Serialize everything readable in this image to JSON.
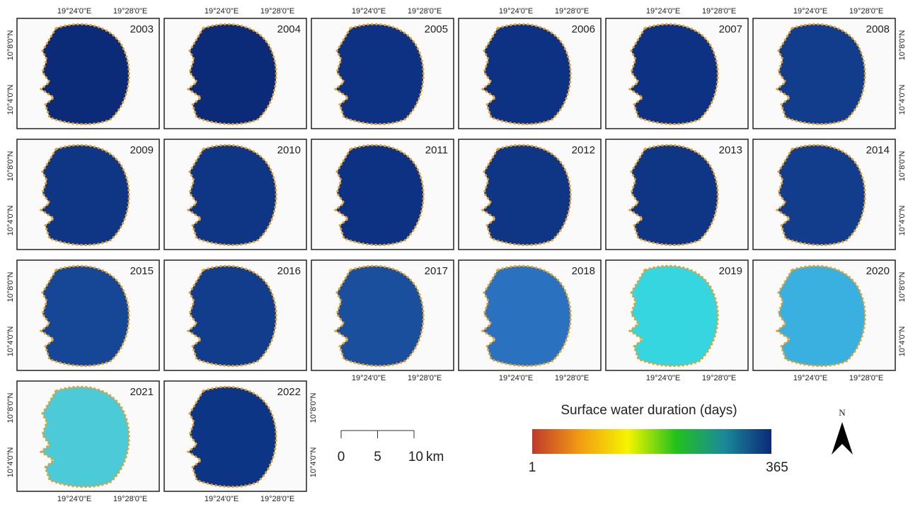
{
  "panels": [
    "2003",
    "2004",
    "2005",
    "2006",
    "2007",
    "2008",
    "2009",
    "2010",
    "2011",
    "2012",
    "2013",
    "2014",
    "2015",
    "2016",
    "2017",
    "2018",
    "2019",
    "2020",
    "2021",
    "2022"
  ],
  "lon_labels": [
    "19°24'0\"E",
    "19°28'0\"E"
  ],
  "lat_labels": [
    "10°8'0\"N",
    "10°4'0\"N"
  ],
  "scale_bar": {
    "ticks": [
      0,
      5,
      10
    ],
    "unit": "km"
  },
  "legend": {
    "title": "Surface water duration (days)",
    "min": 1,
    "max": 365
  },
  "north": "N"
}
